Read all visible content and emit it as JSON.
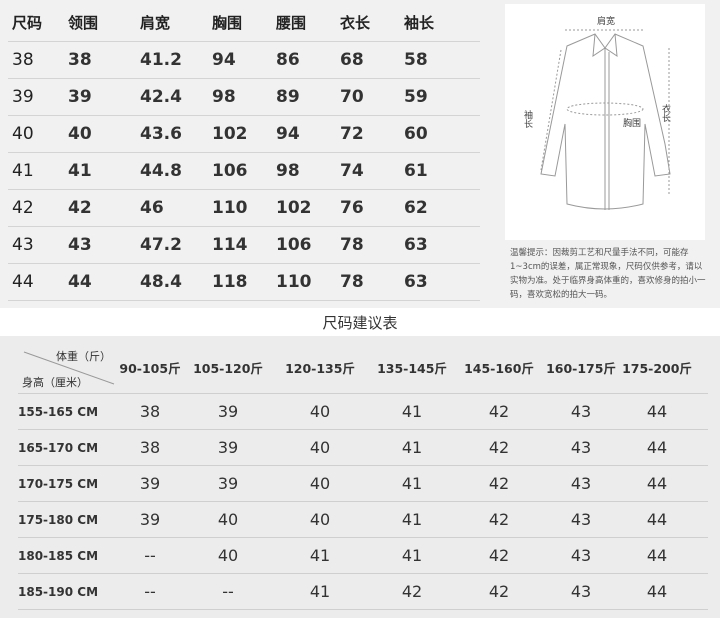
{
  "garment_table": {
    "headers": [
      "尺码",
      "领围",
      "肩宽",
      "胸围",
      "腰围",
      "衣长",
      "袖长"
    ],
    "rows": [
      [
        "38",
        "38",
        "41.2",
        "94",
        "86",
        "68",
        "58"
      ],
      [
        "39",
        "39",
        "42.4",
        "98",
        "89",
        "70",
        "59"
      ],
      [
        "40",
        "40",
        "43.6",
        "102",
        "94",
        "72",
        "60"
      ],
      [
        "41",
        "41",
        "44.8",
        "106",
        "98",
        "74",
        "61"
      ],
      [
        "42",
        "42",
        "46",
        "110",
        "102",
        "76",
        "62"
      ],
      [
        "43",
        "43",
        "47.2",
        "114",
        "106",
        "78",
        "63"
      ],
      [
        "44",
        "44",
        "48.4",
        "118",
        "110",
        "78",
        "63"
      ]
    ]
  },
  "diagram": {
    "shoulder": "肩宽",
    "sleeve": "袖长",
    "length": "衣长",
    "chest": "胸围"
  },
  "notice": "温馨提示：因裁剪工艺和尺量手法不同，可能存1~3cm的误差，属正常现象，尺码仅供参考，请以实物为准。处于临界身高体重的，喜欢修身的拍小一码，喜欢宽松的拍大一码。",
  "recommend_title": "尺码建议表",
  "recommend_table": {
    "weight_label": "体重（斤）",
    "height_label": "身高（厘米）",
    "weight_headers": [
      "90-105斤",
      "105-120斤",
      "120-135斤",
      "135-145斤",
      "145-160斤",
      "160-175斤",
      "175-200斤"
    ],
    "rows": [
      {
        "height": "155-165 CM",
        "sizes": [
          "38",
          "39",
          "40",
          "41",
          "42",
          "43",
          "44"
        ]
      },
      {
        "height": "165-170 CM",
        "sizes": [
          "38",
          "39",
          "40",
          "41",
          "42",
          "43",
          "44"
        ]
      },
      {
        "height": "170-175 CM",
        "sizes": [
          "39",
          "39",
          "40",
          "41",
          "42",
          "43",
          "44"
        ]
      },
      {
        "height": "175-180 CM",
        "sizes": [
          "39",
          "40",
          "40",
          "41",
          "42",
          "43",
          "44"
        ]
      },
      {
        "height": "180-185 CM",
        "sizes": [
          "--",
          "40",
          "41",
          "41",
          "42",
          "43",
          "44"
        ]
      },
      {
        "height": "185-190 CM",
        "sizes": [
          "--",
          "--",
          "41",
          "42",
          "42",
          "43",
          "44"
        ]
      }
    ]
  }
}
